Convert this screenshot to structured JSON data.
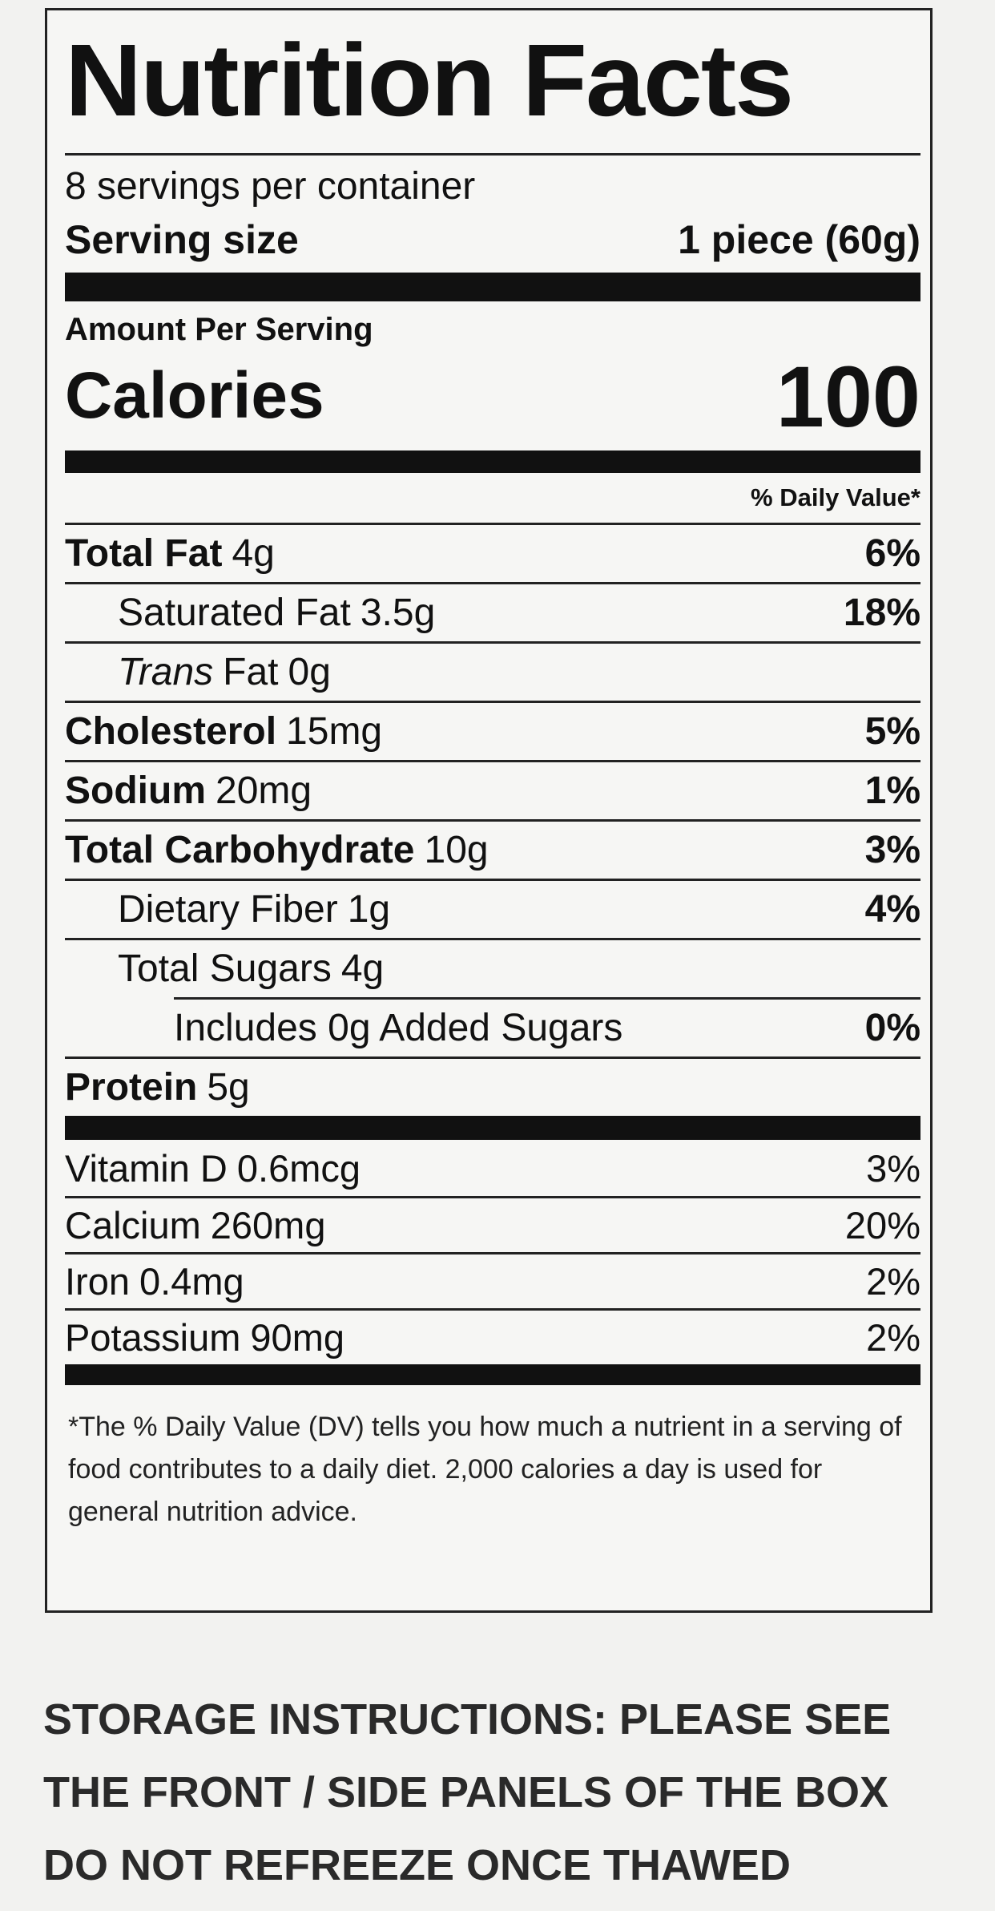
{
  "title": "Nutrition Facts",
  "servings": "8 servings per container",
  "serving_size": {
    "label": "Serving size",
    "value": "1 piece (60g)"
  },
  "amount_per_serving": "Amount Per Serving",
  "calories": {
    "label": "Calories",
    "value": 100
  },
  "daily_value_header": "% Daily Value*",
  "nutrients": [
    {
      "name": "Total Fat",
      "amount": "4g",
      "dv": "6%",
      "bold": true,
      "indent": 0
    },
    {
      "name": "Saturated Fat",
      "amount": "3.5g",
      "dv": "18%",
      "bold": false,
      "indent": 1
    },
    {
      "italic": "Trans",
      "name": "Fat",
      "amount": "0g",
      "bold": false,
      "indent": 1
    },
    {
      "name": "Cholesterol",
      "amount": "15mg",
      "dv": "5%",
      "bold": true,
      "indent": 0
    },
    {
      "name": "Sodium",
      "amount": "20mg",
      "dv": "1%",
      "bold": true,
      "indent": 0
    },
    {
      "name": "Total Carbohydrate",
      "amount": "10g",
      "dv": "3%",
      "bold": true,
      "indent": 0
    },
    {
      "name": "Dietary Fiber",
      "amount": "1g",
      "dv": "4%",
      "bold": false,
      "indent": 1
    },
    {
      "name": "Total Sugars",
      "amount": "4g",
      "bold": false,
      "indent": 1
    },
    {
      "name": "Includes 0g Added Sugars",
      "dv": "0%",
      "bold": false,
      "indent": 2
    },
    {
      "name": "Protein",
      "amount": "5g",
      "bold": true,
      "indent": 0
    }
  ],
  "vitamins": [
    {
      "name": "Vitamin D",
      "amount": "0.6mcg",
      "dv": "3%"
    },
    {
      "name": "Calcium",
      "amount": "260mg",
      "dv": "20%"
    },
    {
      "name": "Iron",
      "amount": "0.4mg",
      "dv": "2%"
    },
    {
      "name": "Potassium",
      "amount": "90mg",
      "dv": "2%"
    }
  ],
  "footnote": {
    "mark": "*",
    "text": "The % Daily Value (DV) tells you how much a nutrient in a serving of food contributes to a daily diet. 2,000 calories a day is used for general nutrition advice."
  },
  "storage": [
    "STORAGE INSTRUCTIONS: PLEASE SEE",
    "THE FRONT / SIDE PANELS OF THE BOX",
    "DO NOT REFREEZE ONCE THAWED"
  ]
}
